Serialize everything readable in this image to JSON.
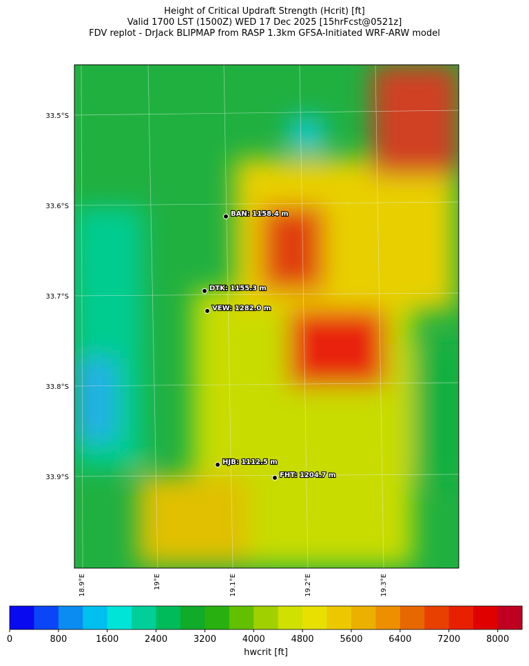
{
  "header": {
    "lines": [
      "Height of Critical Updraft Strength (Hcrit) [ft]",
      "Valid 1700 LST (1500Z) WED 17 Dec 2025 [15hrFcst@0521z]",
      "FDV replot - DrJack BLIPMAP from RASP 1.3km GFSA-Initiated WRF-ARW model"
    ]
  },
  "map": {
    "lat_labels": [
      "33.5°S",
      "33.6°S",
      "33.7°S",
      "33.8°S",
      "33.9°S"
    ],
    "lon_labels": [
      "18.9°E",
      "19°E",
      "19.1°E",
      "19.2°E",
      "19.3°E"
    ],
    "stations": [
      "BAN: 1158.4 m",
      "DTK: 1155.3 m",
      "VEW: 1282.0 m",
      "HJB: 1112.5 m",
      "FHT: 1204.7 m"
    ]
  },
  "colorbar": {
    "label": "hwcrit [ft]",
    "lim": [
      0,
      8400
    ],
    "ticks": [
      0,
      800,
      1600,
      2400,
      3200,
      4000,
      4800,
      5600,
      6400,
      7200,
      8000
    ],
    "colors": [
      "#0a0af0",
      "#0a46f5",
      "#0a8cf0",
      "#00c0ef",
      "#00e4d8",
      "#00cf9a",
      "#00bb5a",
      "#10ab28",
      "#28b010",
      "#62c000",
      "#a0d000",
      "#d0e000",
      "#e8e000",
      "#ecc800",
      "#ecb000",
      "#ec9000",
      "#e86800",
      "#e84000",
      "#e82000",
      "#e00000",
      "#c00020"
    ]
  }
}
